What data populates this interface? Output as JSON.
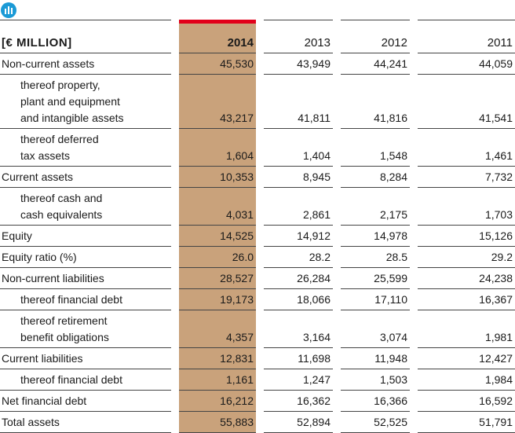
{
  "table": {
    "unit": "[€ MILLION]",
    "columns": [
      "2014",
      "2013",
      "2012",
      "2011"
    ],
    "highlight_column": 0,
    "rows": [
      {
        "label": [
          "Non-current assets"
        ],
        "indent": false,
        "values": [
          "45,530",
          "43,949",
          "44,241",
          "44,059"
        ]
      },
      {
        "label": [
          "thereof property,",
          "plant and equipment",
          "and intangible assets"
        ],
        "indent": true,
        "values": [
          "43,217",
          "41,811",
          "41,816",
          "41,541"
        ]
      },
      {
        "label": [
          "thereof deferred",
          "tax assets"
        ],
        "indent": true,
        "values": [
          "1,604",
          "1,404",
          "1,548",
          "1,461"
        ]
      },
      {
        "label": [
          "Current assets"
        ],
        "indent": false,
        "values": [
          "10,353",
          "8,945",
          "8,284",
          "7,732"
        ]
      },
      {
        "label": [
          "thereof cash and",
          "cash equivalents"
        ],
        "indent": true,
        "values": [
          "4,031",
          "2,861",
          "2,175",
          "1,703"
        ]
      },
      {
        "label": [
          "Equity"
        ],
        "indent": false,
        "values": [
          "14,525",
          "14,912",
          "14,978",
          "15,126"
        ]
      },
      {
        "label": [
          "Equity ratio (%)"
        ],
        "indent": false,
        "values": [
          "26.0",
          "28.2",
          "28.5",
          "29.2"
        ]
      },
      {
        "label": [
          "Non-current liabilities"
        ],
        "indent": false,
        "values": [
          "28,527",
          "26,284",
          "25,599",
          "24,238"
        ]
      },
      {
        "label": [
          "thereof financial debt"
        ],
        "indent": true,
        "values": [
          "19,173",
          "18,066",
          "17,110",
          "16,367"
        ]
      },
      {
        "label": [
          "thereof retirement",
          "benefit obligations"
        ],
        "indent": true,
        "values": [
          "4,357",
          "3,164",
          "3,074",
          "1,981"
        ]
      },
      {
        "label": [
          "Current liabilities"
        ],
        "indent": false,
        "values": [
          "12,831",
          "11,698",
          "11,948",
          "12,427"
        ]
      },
      {
        "label": [
          "thereof financial debt"
        ],
        "indent": true,
        "values": [
          "1,161",
          "1,247",
          "1,503",
          "1,984"
        ]
      },
      {
        "label": [
          "Net financial debt"
        ],
        "indent": false,
        "values": [
          "16,212",
          "16,362",
          "16,366",
          "16,592"
        ]
      },
      {
        "label": [
          "Total assets"
        ],
        "indent": false,
        "values": [
          "55,883",
          "52,894",
          "52,525",
          "51,791"
        ]
      }
    ]
  }
}
